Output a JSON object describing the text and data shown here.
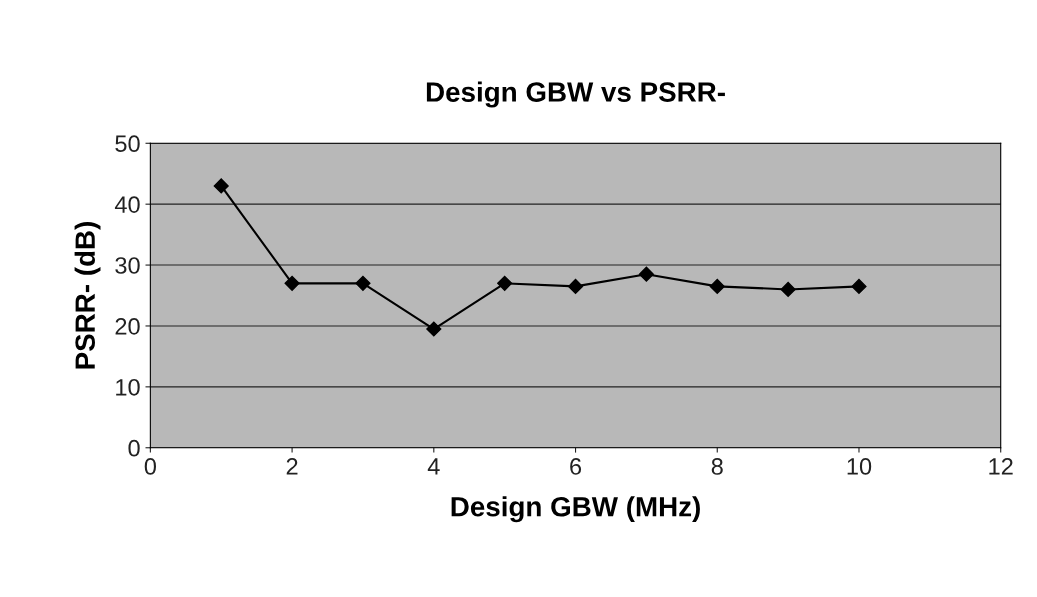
{
  "chart_data": {
    "type": "line",
    "title": "Design GBW vs PSRR-",
    "xlabel": "Design GBW (MHz)",
    "ylabel": "PSRR- (dB)",
    "x": [
      1,
      2,
      3,
      4,
      5,
      6,
      7,
      8,
      9,
      10
    ],
    "series": [
      {
        "color": "#000000",
        "values": [
          43,
          27,
          27,
          19.5,
          27,
          26.5,
          28.5,
          26.5,
          26,
          26.5
        ]
      }
    ],
    "xlim": [
      0,
      12
    ],
    "xticks": [
      0,
      2,
      4,
      6,
      8,
      10,
      12
    ],
    "ylim": [
      0,
      50
    ],
    "yticks": [
      0,
      10,
      20,
      30,
      40,
      50
    ],
    "grid": "y",
    "marker": "diamond",
    "line_style": "solid",
    "legend": false
  }
}
